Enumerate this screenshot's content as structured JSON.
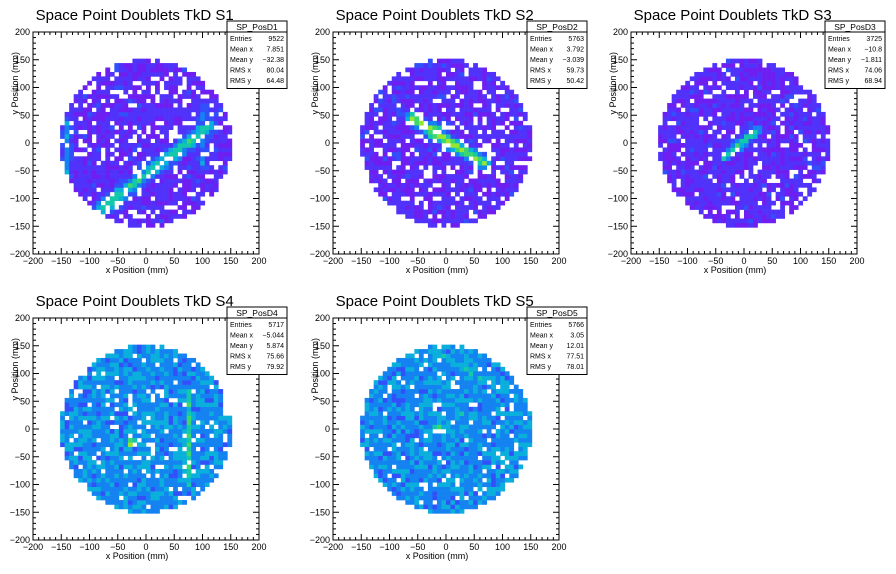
{
  "chart_data": [
    {
      "type": "heatmap",
      "title": "Space Point Doublets TkD S1",
      "xlabel": "x Position (mm)",
      "ylabel": "y Position (mm)",
      "xlim": [
        -200,
        200
      ],
      "ylim": [
        -200,
        200
      ],
      "xticks": [
        "−200",
        "−150",
        "−100",
        "−50",
        "0",
        "50",
        "100",
        "150",
        "200"
      ],
      "yticks": [
        "−200",
        "−150",
        "−100",
        "−50",
        "0",
        "50",
        "100",
        "150",
        "200"
      ],
      "stats": {
        "name": "SP_PosD1",
        "rows": [
          {
            "label": "Entries",
            "value": "9522"
          },
          {
            "label": "Mean x",
            "value": "7.851"
          },
          {
            "label": "Mean y",
            "value": "−32.38"
          },
          {
            "label": "RMS x",
            "value": "80.04"
          },
          {
            "label": "RMS y",
            "value": "64.48"
          }
        ]
      },
      "features": [
        {
          "kind": "band",
          "x1": -75,
          "y1": -115,
          "x2": 110,
          "y2": 30,
          "width": 22,
          "level": 0.55
        },
        {
          "kind": "band",
          "x1": -140,
          "y1": 40,
          "x2": -140,
          "y2": -60,
          "width": 16,
          "level": 0.3
        },
        {
          "kind": "band",
          "x1": 100,
          "y1": 60,
          "x2": 100,
          "y2": -40,
          "width": 16,
          "level": 0.3
        }
      ],
      "hole_fraction": 0.18,
      "base_level": 0.05
    },
    {
      "type": "heatmap",
      "title": "Space Point Doublets TkD S2",
      "xlabel": "x Position (mm)",
      "ylabel": "y Position (mm)",
      "xlim": [
        -200,
        200
      ],
      "ylim": [
        -200,
        200
      ],
      "xticks": [
        "−200",
        "−150",
        "−100",
        "−50",
        "0",
        "50",
        "100",
        "150",
        "200"
      ],
      "yticks": [
        "−200",
        "−150",
        "−100",
        "−50",
        "0",
        "50",
        "100",
        "150",
        "200"
      ],
      "stats": {
        "name": "SP_PosD2",
        "rows": [
          {
            "label": "Entries",
            "value": "5763"
          },
          {
            "label": "Mean x",
            "value": "3.792"
          },
          {
            "label": "Mean y",
            "value": "−3.039"
          },
          {
            "label": "RMS x",
            "value": "59.73"
          },
          {
            "label": "RMS y",
            "value": "50.42"
          }
        ]
      },
      "features": [
        {
          "kind": "band",
          "x1": -60,
          "y1": 45,
          "x2": 65,
          "y2": -35,
          "width": 18,
          "level": 0.75
        },
        {
          "kind": "spot",
          "x": -20,
          "y": 20,
          "r": 20,
          "level": 0.95
        }
      ],
      "hole_fraction": 0.2,
      "base_level": 0.05
    },
    {
      "type": "heatmap",
      "title": "Space Point Doublets TkD S3",
      "xlabel": "x Position (mm)",
      "ylabel": "y Position (mm)",
      "xlim": [
        -200,
        200
      ],
      "ylim": [
        -200,
        200
      ],
      "xticks": [
        "−200",
        "−150",
        "−100",
        "−50",
        "0",
        "50",
        "100",
        "150",
        "200"
      ],
      "yticks": [
        "−200",
        "−150",
        "−100",
        "−50",
        "0",
        "50",
        "100",
        "150",
        "200"
      ],
      "stats": {
        "name": "SP_PosD3",
        "rows": [
          {
            "label": "Entries",
            "value": "3725"
          },
          {
            "label": "Mean x",
            "value": "−10.8"
          },
          {
            "label": "Mean y",
            "value": "−1.811"
          },
          {
            "label": "RMS x",
            "value": "74.06"
          },
          {
            "label": "RMS y",
            "value": "68.94"
          }
        ]
      },
      "features": [
        {
          "kind": "band",
          "x1": -35,
          "y1": -25,
          "x2": 25,
          "y2": 25,
          "width": 14,
          "level": 0.55
        },
        {
          "kind": "spot",
          "x": -10,
          "y": -5,
          "r": 16,
          "level": 0.7
        }
      ],
      "hole_fraction": 0.14,
      "base_level": 0.05
    },
    {
      "type": "heatmap",
      "title": "Space Point Doublets TkD S4",
      "xlabel": "x Position (mm)",
      "ylabel": "y Position (mm)",
      "xlim": [
        -200,
        200
      ],
      "ylim": [
        -200,
        200
      ],
      "xticks": [
        "−200",
        "−150",
        "−100",
        "−50",
        "0",
        "50",
        "100",
        "150",
        "200"
      ],
      "yticks": [
        "−200",
        "−150",
        "−100",
        "−50",
        "0",
        "50",
        "100",
        "150",
        "200"
      ],
      "stats": {
        "name": "SP_PosD4",
        "rows": [
          {
            "label": "Entries",
            "value": "5717"
          },
          {
            "label": "Mean x",
            "value": "−5.044"
          },
          {
            "label": "Mean y",
            "value": "5.874"
          },
          {
            "label": "RMS x",
            "value": "75.66"
          },
          {
            "label": "RMS y",
            "value": "79.92"
          }
        ]
      },
      "features": [
        {
          "kind": "band",
          "x1": 0,
          "y1": 90,
          "x2": 0,
          "y2": -100,
          "width": 14,
          "level": 0.45
        },
        {
          "kind": "band",
          "x1": 75,
          "y1": 70,
          "x2": 75,
          "y2": -100,
          "width": 14,
          "level": 0.55
        },
        {
          "kind": "spot",
          "x": -25,
          "y": -25,
          "r": 14,
          "level": 0.95
        }
      ],
      "hole_fraction": 0.1,
      "base_level": 0.3
    },
    {
      "type": "heatmap",
      "title": "Space Point Doublets TkD S5",
      "xlabel": "x Position (mm)",
      "ylabel": "y Position (mm)",
      "xlim": [
        -200,
        200
      ],
      "ylim": [
        -200,
        200
      ],
      "xticks": [
        "−200",
        "−150",
        "−100",
        "−50",
        "0",
        "50",
        "100",
        "150",
        "200"
      ],
      "yticks": [
        "−200",
        "−150",
        "−100",
        "−50",
        "0",
        "50",
        "100",
        "150",
        "200"
      ],
      "stats": {
        "name": "SP_PosD5",
        "rows": [
          {
            "label": "Entries",
            "value": "5766"
          },
          {
            "label": "Mean x",
            "value": "3.05"
          },
          {
            "label": "Mean y",
            "value": "12.01"
          },
          {
            "label": "RMS x",
            "value": "77.51"
          },
          {
            "label": "RMS y",
            "value": "78.01"
          }
        ]
      },
      "features": [
        {
          "kind": "band",
          "x1": -40,
          "y1": 150,
          "x2": 120,
          "y2": 60,
          "width": 16,
          "level": 0.45
        },
        {
          "kind": "band",
          "x1": -60,
          "y1": -30,
          "x2": 30,
          "y2": 30,
          "width": 14,
          "level": 0.4
        },
        {
          "kind": "spot",
          "x": -15,
          "y": 0,
          "r": 14,
          "level": 0.95
        }
      ],
      "hole_fraction": 0.1,
      "base_level": 0.3
    }
  ]
}
